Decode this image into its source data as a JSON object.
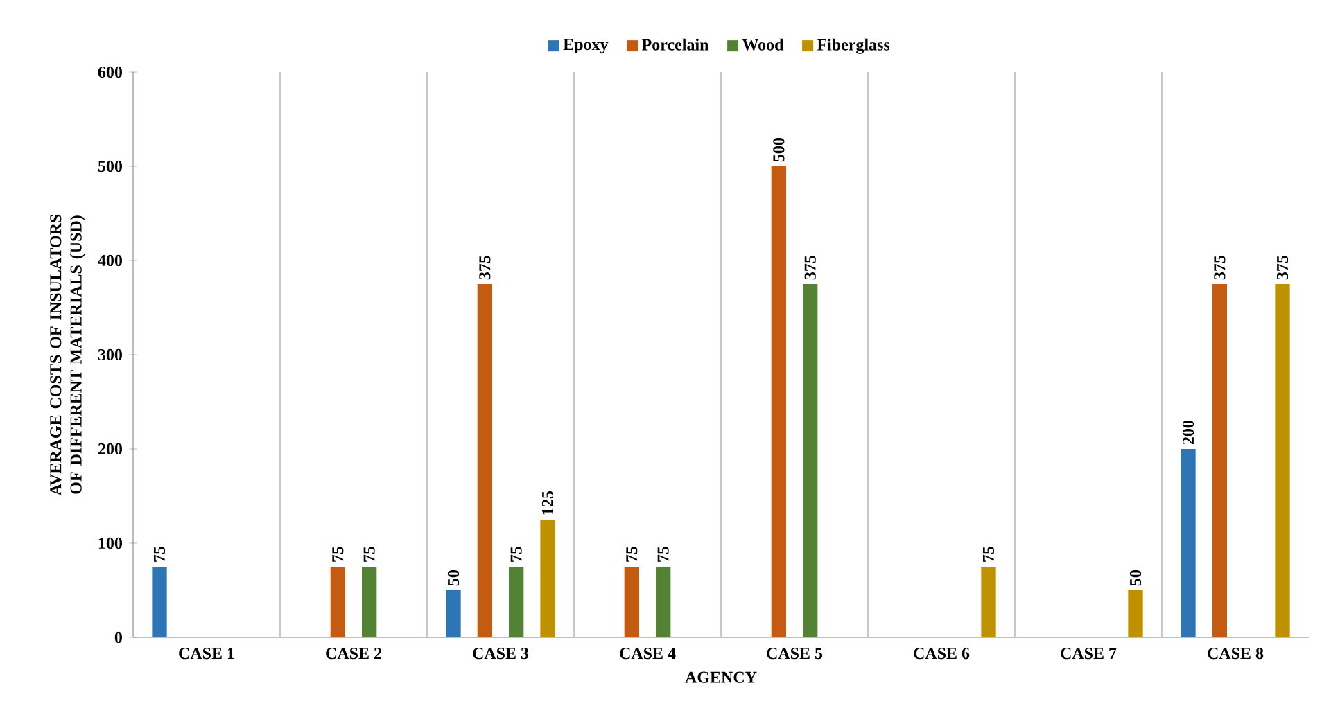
{
  "chart_data": {
    "type": "bar",
    "xlabel": "AGENCY",
    "ylabel": "AVERAGE COSTS OF INSULATORS OF DIFFERENT MATERIALS (USD)",
    "categories": [
      "CASE 1",
      "CASE 2",
      "CASE 3",
      "CASE 4",
      "CASE 5",
      "CASE 6",
      "CASE 7",
      "CASE 8"
    ],
    "series": [
      {
        "name": "Epoxy",
        "color": "#2e75b6",
        "values": [
          75,
          null,
          50,
          null,
          null,
          null,
          null,
          200
        ]
      },
      {
        "name": "Porcelain",
        "color": "#c55a11",
        "values": [
          null,
          75,
          375,
          75,
          500,
          null,
          null,
          375
        ]
      },
      {
        "name": "Wood",
        "color": "#548235",
        "values": [
          null,
          75,
          75,
          75,
          375,
          null,
          null,
          null
        ]
      },
      {
        "name": "Fiberglass",
        "color": "#bf9000",
        "values": [
          null,
          null,
          125,
          null,
          null,
          75,
          50,
          375
        ]
      }
    ],
    "ylim": [
      0,
      600
    ],
    "yticks": [
      0,
      100,
      200,
      300,
      400,
      500,
      600
    ],
    "grid": "x",
    "legend": "top",
    "data_labels": true
  }
}
